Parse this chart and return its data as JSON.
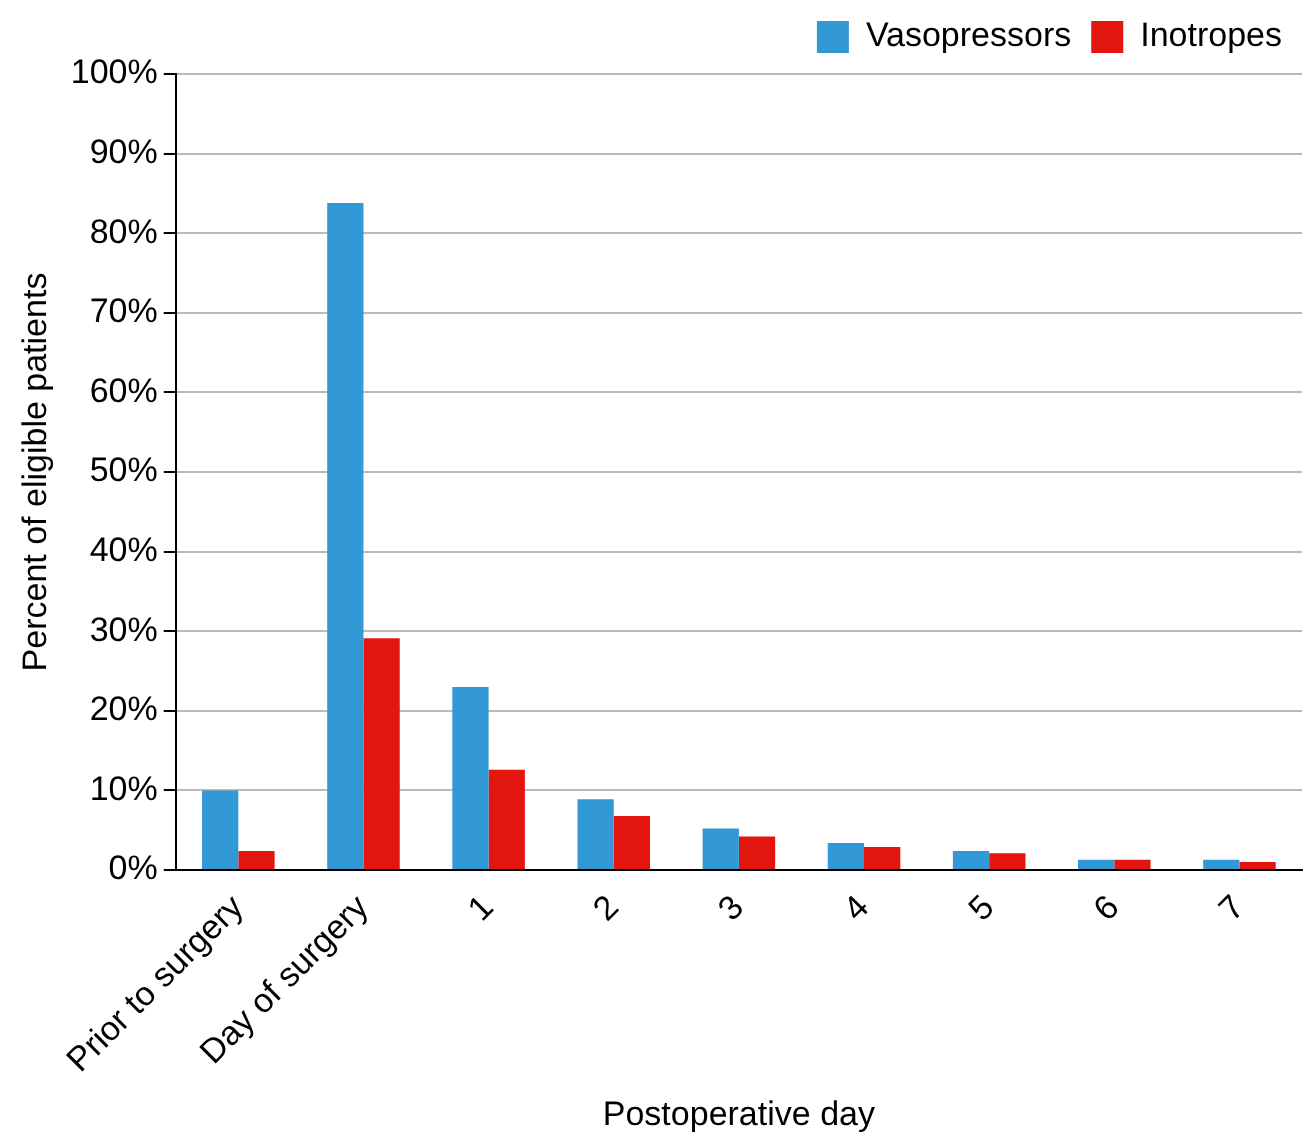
{
  "chart_data": {
    "type": "bar",
    "xlabel": "Postoperative day",
    "ylabel": "Percent of eligible patients",
    "categories": [
      "Prior to surgery",
      "Day of surgery",
      "1",
      "2",
      "3",
      "4",
      "5",
      "6",
      "7"
    ],
    "series": [
      {
        "name": "Vasopressors",
        "color": "#3399d6",
        "values": [
          10,
          83.8,
          23,
          8.9,
          5.2,
          3.4,
          2.4,
          1.3,
          1.3
        ]
      },
      {
        "name": "Inotropes",
        "color": "#e3160f",
        "values": [
          2.4,
          29.1,
          12.6,
          6.8,
          4.2,
          2.9,
          2.1,
          1.3,
          1.0
        ]
      }
    ],
    "ylim": [
      0,
      100
    ],
    "yticks": [
      {
        "value": 0,
        "label": "0%"
      },
      {
        "value": 10,
        "label": "10%"
      },
      {
        "value": 20,
        "label": "20%"
      },
      {
        "value": 30,
        "label": "30%"
      },
      {
        "value": 40,
        "label": "40%"
      },
      {
        "value": 50,
        "label": "50%"
      },
      {
        "value": 60,
        "label": "60%"
      },
      {
        "value": 70,
        "label": "70%"
      },
      {
        "value": 80,
        "label": "80%"
      },
      {
        "value": 90,
        "label": "90%"
      },
      {
        "value": 100,
        "label": "100%"
      }
    ],
    "grid": "y",
    "legend": "top right"
  }
}
